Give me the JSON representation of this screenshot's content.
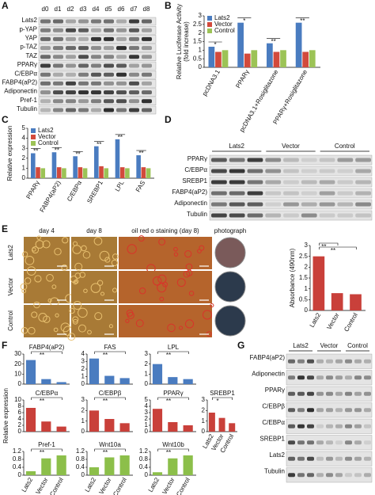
{
  "panel_labels": [
    "A",
    "B",
    "C",
    "D",
    "E",
    "F",
    "G"
  ],
  "chart_data": [
    {
      "type": "bar",
      "ylabel": [
        "Relative Luciferase Activity",
        "(fold increase)"
      ],
      "categories": [
        "pcDNA3.1",
        "PPARγ",
        "pcDNA3.1+Rosiglitazone",
        "PPARγ+Rosiglitazone"
      ],
      "series": [
        {
          "name": "Lats2",
          "color": "#4a7cc0",
          "values": [
            1.2,
            2.6,
            1.4,
            2.6
          ]
        },
        {
          "name": "Vector",
          "color": "#d24a3c",
          "values": [
            0.9,
            0.8,
            0.9,
            0.9
          ]
        },
        {
          "name": "Control",
          "color": "#9cc356",
          "values": [
            1.0,
            1.0,
            1.0,
            1.0
          ]
        }
      ],
      "ylim": [
        0,
        3
      ],
      "yticks": [
        0,
        0.5,
        1,
        1.5,
        2,
        2.5,
        3
      ],
      "significance": [
        "*",
        "*",
        "**",
        "**"
      ]
    },
    {
      "type": "bar",
      "ylabel": [
        "Relative expression"
      ],
      "categories": [
        "PPARγ",
        "FABP4(aP2)",
        "C/EBPα",
        "SREBP1",
        "LPL",
        "FAS"
      ],
      "series": [
        {
          "name": "Lats2",
          "color": "#4a7cc0",
          "values": [
            2.5,
            2.6,
            2.2,
            3.2,
            3.9,
            2.3
          ]
        },
        {
          "name": "Vector",
          "color": "#d24a3c",
          "values": [
            1.1,
            1.1,
            1.1,
            1.2,
            1.1,
            1.1
          ]
        },
        {
          "name": "Control",
          "color": "#9cc356",
          "values": [
            1.0,
            1.0,
            1.0,
            1.0,
            1.0,
            1.0
          ]
        }
      ],
      "ylim": [
        0,
        5
      ],
      "yticks": [
        0,
        1,
        2,
        3,
        4,
        5
      ],
      "significance": [
        "**",
        "**",
        "**",
        "**",
        "**",
        "**"
      ]
    },
    {
      "type": "bar",
      "ylabel": [
        "Absorbance (490nm)"
      ],
      "categories": [
        "Lats2",
        "Vector",
        "Control"
      ],
      "values": [
        2.5,
        0.8,
        0.75
      ],
      "color": "#c9403a",
      "ylim": [
        0,
        3
      ],
      "yticks": [
        0,
        0.5,
        1,
        1.5,
        2,
        2.5,
        3
      ],
      "comparisons": [
        "**",
        "**"
      ]
    },
    {
      "type": "bar",
      "title": "FABP4(aP2)",
      "categories": [
        null,
        null,
        null
      ],
      "values": [
        24,
        5,
        2
      ],
      "color": "#4a7cc0",
      "ylim": [
        0,
        30
      ],
      "yticks": [
        0,
        10,
        20,
        30
      ],
      "comparisons": [
        "**"
      ]
    },
    {
      "type": "bar",
      "title": "FAS",
      "categories": [
        null,
        null,
        null
      ],
      "values": [
        3.4,
        1.1,
        0.8
      ],
      "color": "#4a7cc0",
      "ylim": [
        0,
        4
      ],
      "yticks": [
        0,
        1,
        2,
        3,
        4
      ],
      "comparisons": [
        "**"
      ]
    },
    {
      "type": "bar",
      "title": "LPL",
      "categories": [
        null,
        null,
        null
      ],
      "values": [
        2.0,
        0.7,
        0.5
      ],
      "color": "#4a7cc0",
      "ylim": [
        0,
        3
      ],
      "yticks": [
        0,
        1,
        2,
        3
      ],
      "comparisons": [
        "**"
      ]
    },
    {
      "type": "bar",
      "title": "C/EBPα",
      "categories": [
        null,
        null,
        null
      ],
      "values": [
        7.5,
        3.2,
        1.6
      ],
      "color": "#c9403a",
      "ylim": [
        0,
        10
      ],
      "yticks": [
        0,
        2,
        4,
        6,
        8,
        10
      ],
      "comparisons": [
        "**"
      ]
    },
    {
      "type": "bar",
      "title": "C/EBPβ",
      "categories": [
        null,
        null,
        null
      ],
      "values": [
        2.0,
        1.2,
        0.8
      ],
      "color": "#c9403a",
      "ylim": [
        0,
        3
      ],
      "yticks": [
        0,
        1,
        2,
        3
      ],
      "comparisons": [
        "**"
      ]
    },
    {
      "type": "bar",
      "title": "PPARγ",
      "categories": [
        null,
        null,
        null
      ],
      "values": [
        3.6,
        1.5,
        1.0
      ],
      "color": "#c9403a",
      "ylim": [
        0,
        5
      ],
      "yticks": [
        0,
        1,
        2,
        3,
        4,
        5
      ],
      "comparisons": [
        "**"
      ]
    },
    {
      "type": "bar",
      "title": "SREBP1",
      "categories": [
        "Lats2",
        "Vector",
        "Control"
      ],
      "values": [
        1.8,
        1.3,
        0.8
      ],
      "color": "#c9403a",
      "ylim": [
        0,
        3
      ],
      "yticks": [
        0,
        1,
        2,
        3
      ],
      "comparisons": [
        "*"
      ]
    },
    {
      "type": "bar",
      "title": "Pref-1",
      "categories": [
        "Lats2",
        "Vector",
        "Control"
      ],
      "values": [
        0.2,
        0.85,
        1.0
      ],
      "color": "#8cbf4a",
      "ylim": [
        0,
        1.2
      ],
      "yticks": [
        0,
        0.4,
        0.8,
        1.2
      ],
      "comparisons": [
        "**"
      ]
    },
    {
      "type": "bar",
      "title": "Wnt10a",
      "categories": [
        "Lats2",
        "Vector",
        "Control"
      ],
      "values": [
        0.4,
        0.9,
        1.0
      ],
      "color": "#8cbf4a",
      "ylim": [
        0,
        1.2
      ],
      "yticks": [
        0,
        0.4,
        0.8,
        1.2
      ],
      "comparisons": [
        "**"
      ]
    },
    {
      "type": "bar",
      "title": "Wnt10b",
      "categories": [
        "Lats2",
        "Vector",
        "Control"
      ],
      "values": [
        0.15,
        0.85,
        1.0
      ],
      "color": "#8cbf4a",
      "ylim": [
        0,
        1.2
      ],
      "yticks": [
        0,
        0.4,
        0.8,
        1.2
      ],
      "comparisons": [
        "**"
      ]
    }
  ],
  "shared_labels": {
    "F_ylabel": "Relative expression"
  },
  "blots": {
    "A": {
      "columns": [
        "d0",
        "d1",
        "d2",
        "d3",
        "d4",
        "d5",
        "d6",
        "d7",
        "d8"
      ],
      "rows": [
        "Lats2",
        "p-YAP",
        "YAP",
        "p-TAZ",
        "TAZ",
        "PPARγ",
        "C/EBPα",
        "FABP4(aP2)",
        "Adiponectin",
        "Pref-1",
        "Tubulin"
      ]
    },
    "D": {
      "groups": [
        "Lats2",
        "Vector",
        "Control"
      ],
      "rows": [
        "PPARγ",
        "C/EBPα",
        "SREBP1",
        "FABP4(aP2)",
        "Adiponectin",
        "Tubulin"
      ]
    },
    "G": {
      "groups": [
        "Lats2",
        "Vector",
        "Control"
      ],
      "rows": [
        "FABP4(aP2)",
        "Adiponectin",
        "PPARγ",
        "C/EBPβ",
        "C/EBPα",
        "SREBP1",
        "Lats2",
        "Tubulin"
      ]
    }
  },
  "images": {
    "E": {
      "columns": [
        "day 4",
        "day 8",
        "oil red o staining (day 8)",
        "photograph"
      ],
      "rows": [
        "Lats2",
        "Vector",
        "Control"
      ]
    }
  }
}
